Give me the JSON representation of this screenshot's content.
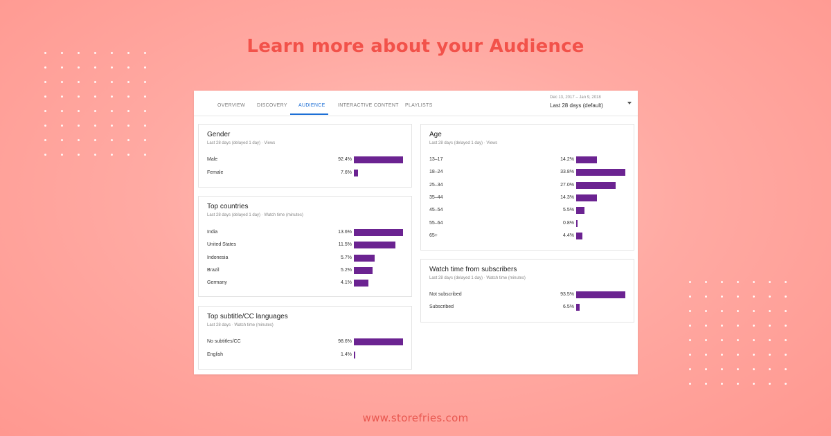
{
  "headline": "Learn more about your Audience",
  "footer_url": "www.storefries.com",
  "colors": {
    "accent": "#f2524a",
    "bar": "#6b2391",
    "active_tab": "#1d6fd6"
  },
  "tabs": [
    {
      "label": "OVERVIEW",
      "active": false
    },
    {
      "label": "DISCOVERY",
      "active": false
    },
    {
      "label": "AUDIENCE",
      "active": true
    },
    {
      "label": "INTERACTIVE CONTENT",
      "active": false
    },
    {
      "label": "PLAYLISTS",
      "active": false
    }
  ],
  "daterange": {
    "dates": "Dec 13, 2017 – Jan 9, 2018",
    "label": "Last 28 days (default)",
    "icon": "caret-down-icon"
  },
  "cards": {
    "gender": {
      "title": "Gender",
      "subtitle": "Last 28 days (delayed 1 day) · Views",
      "rows": [
        {
          "label": "Male",
          "pct": "92.4%",
          "value": 92.4
        },
        {
          "label": "Female",
          "pct": "7.6%",
          "value": 7.6
        }
      ]
    },
    "countries": {
      "title": "Top countries",
      "subtitle": "Last 28 days (delayed 1 day) · Watch time (minutes)",
      "rows": [
        {
          "label": "India",
          "pct": "13.6%",
          "value": 13.6
        },
        {
          "label": "United States",
          "pct": "11.5%",
          "value": 11.5
        },
        {
          "label": "Indonesia",
          "pct": "5.7%",
          "value": 5.7
        },
        {
          "label": "Brazil",
          "pct": "5.2%",
          "value": 5.2
        },
        {
          "label": "Germany",
          "pct": "4.1%",
          "value": 4.1
        }
      ]
    },
    "subtitles": {
      "title": "Top subtitle/CC languages",
      "subtitle": "Last 28 days · Watch time (minutes)",
      "rows": [
        {
          "label": "No subtitles/CC",
          "pct": "98.6%",
          "value": 98.6
        },
        {
          "label": "English",
          "pct": "1.4%",
          "value": 1.4
        }
      ]
    },
    "age": {
      "title": "Age",
      "subtitle": "Last 28 days (delayed 1 day) · Views",
      "rows": [
        {
          "label": "13–17",
          "pct": "14.2%",
          "value": 14.2
        },
        {
          "label": "18–24",
          "pct": "33.8%",
          "value": 33.8
        },
        {
          "label": "25–34",
          "pct": "27.0%",
          "value": 27.0
        },
        {
          "label": "35–44",
          "pct": "14.3%",
          "value": 14.3
        },
        {
          "label": "45–54",
          "pct": "5.5%",
          "value": 5.5
        },
        {
          "label": "55–64",
          "pct": "0.8%",
          "value": 0.8
        },
        {
          "label": "65+",
          "pct": "4.4%",
          "value": 4.4
        }
      ]
    },
    "subscribers": {
      "title": "Watch time from subscribers",
      "subtitle": "Last 28 days (delayed 1 day) · Watch time (minutes)",
      "rows": [
        {
          "label": "Not subscribed",
          "pct": "93.5%",
          "value": 93.5
        },
        {
          "label": "Subscribed",
          "pct": "6.5%",
          "value": 6.5
        }
      ]
    }
  }
}
